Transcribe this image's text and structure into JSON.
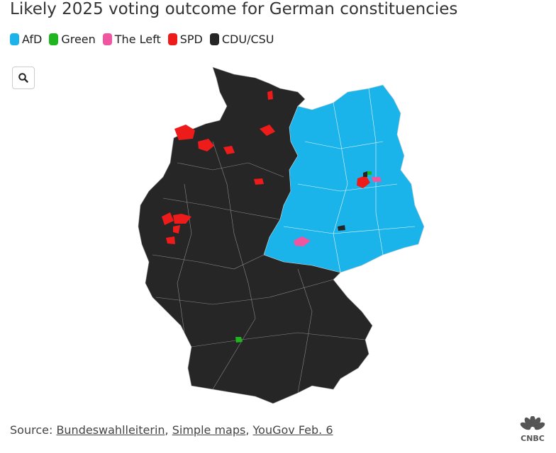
{
  "title": "Likely 2025 voting outcome for German constituencies",
  "legend": [
    {
      "name": "AfD",
      "color": "#1ab4ea"
    },
    {
      "name": "Green",
      "color": "#1fb51f"
    },
    {
      "name": "The Left",
      "color": "#f0559f"
    },
    {
      "name": "SPD",
      "color": "#ee1b1b"
    },
    {
      "name": "CDU/CSU",
      "color": "#262626"
    }
  ],
  "source": {
    "label": "Source:",
    "separator": ",",
    "links": [
      "Bundeswahlleiterin",
      "Simple maps",
      "YouGov Feb. 6"
    ]
  },
  "logo": "CNBC"
}
